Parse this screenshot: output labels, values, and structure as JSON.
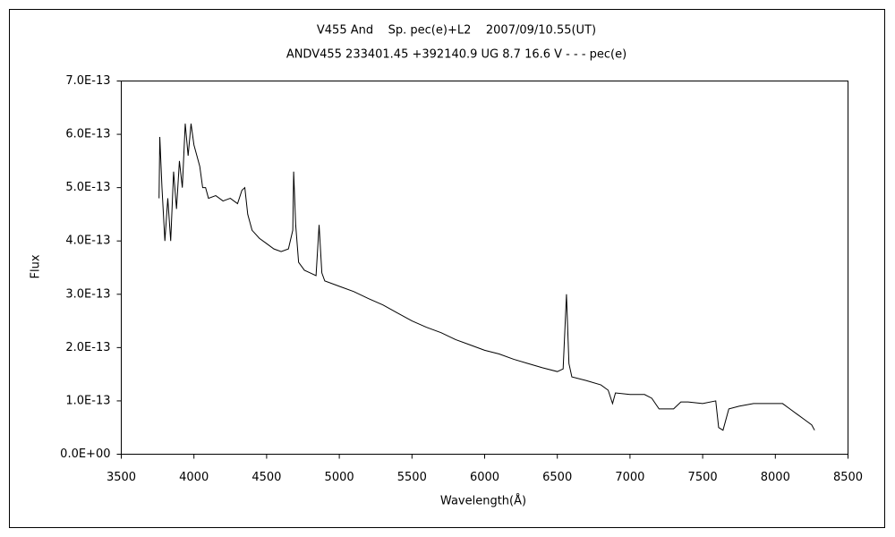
{
  "chart_data": {
    "type": "line",
    "title": "V455 And    Sp. pec(e)+L2    2007/09/10.55(UT)",
    "subtitle": "ANDV455 233401.45 +392140.9 UG 8.7 16.6 V - - - pec(e)",
    "x_label": "Wavelength(Å)",
    "y_label": "Flux",
    "x": [
      3760,
      3765,
      3780,
      3800,
      3820,
      3840,
      3860,
      3880,
      3900,
      3920,
      3940,
      3960,
      3980,
      4000,
      4020,
      4040,
      4060,
      4080,
      4100,
      4150,
      4200,
      4250,
      4300,
      4330,
      4350,
      4370,
      4400,
      4450,
      4500,
      4550,
      4600,
      4650,
      4680,
      4686,
      4700,
      4720,
      4760,
      4800,
      4840,
      4861,
      4880,
      4900,
      5000,
      5100,
      5200,
      5300,
      5400,
      5500,
      5600,
      5700,
      5800,
      5900,
      6000,
      6100,
      6200,
      6300,
      6400,
      6500,
      6540,
      6563,
      6580,
      6600,
      6700,
      6800,
      6850,
      6880,
      6900,
      7000,
      7100,
      7150,
      7200,
      7300,
      7350,
      7400,
      7500,
      7590,
      7610,
      7640,
      7680,
      7750,
      7850,
      7950,
      8050,
      8100,
      8150,
      8200,
      8250,
      8270
    ],
    "series": [
      {
        "name": "Flux",
        "color": "#000000",
        "values": [
          4.8e-13,
          5.95e-13,
          5e-13,
          4e-13,
          4.8e-13,
          4e-13,
          5.3e-13,
          4.6e-13,
          5.5e-13,
          5e-13,
          6.2e-13,
          5.6e-13,
          6.2e-13,
          5.8e-13,
          5.6e-13,
          5.4e-13,
          5e-13,
          5e-13,
          4.8e-13,
          4.85e-13,
          4.75e-13,
          4.8e-13,
          4.7e-13,
          4.95e-13,
          5e-13,
          4.5e-13,
          4.2e-13,
          4.05e-13,
          3.95e-13,
          3.85e-13,
          3.8e-13,
          3.85e-13,
          4.2e-13,
          5.3e-13,
          4.3e-13,
          3.6e-13,
          3.45e-13,
          3.4e-13,
          3.35e-13,
          4.3e-13,
          3.4e-13,
          3.25e-13,
          3.15e-13,
          3.05e-13,
          2.92e-13,
          2.8e-13,
          2.65e-13,
          2.5e-13,
          2.38e-13,
          2.28e-13,
          2.15e-13,
          2.05e-13,
          1.95e-13,
          1.88e-13,
          1.78e-13,
          1.7e-13,
          1.62e-13,
          1.55e-13,
          1.6e-13,
          3e-13,
          1.7e-13,
          1.45e-13,
          1.38e-13,
          1.3e-13,
          1.2e-13,
          9.5e-14,
          1.15e-13,
          1.12e-13,
          1.12e-13,
          1.05e-13,
          8.5e-14,
          8.5e-14,
          9.8e-14,
          9.8e-14,
          9.5e-14,
          1e-13,
          5e-14,
          4.5e-14,
          8.5e-14,
          9e-14,
          9.5e-14,
          9.5e-14,
          9.5e-14,
          8.5e-14,
          7.5e-14,
          6.5e-14,
          5.5e-14,
          4.5e-14
        ]
      }
    ],
    "xlim": [
      3500,
      8500
    ],
    "xticks": [
      3500,
      4000,
      4500,
      5000,
      5500,
      6000,
      6500,
      7000,
      7500,
      8000,
      8500
    ],
    "ylim": [
      0,
      7e-13
    ],
    "yticks": [
      {
        "value": 0,
        "label": "0.0E+00"
      },
      {
        "value": 1e-13,
        "label": "1.0E-13"
      },
      {
        "value": 2e-13,
        "label": "2.0E-13"
      },
      {
        "value": 3e-13,
        "label": "3.0E-13"
      },
      {
        "value": 4e-13,
        "label": "4.0E-13"
      },
      {
        "value": 5e-13,
        "label": "5.0E-13"
      },
      {
        "value": 6e-13,
        "label": "6.0E-13"
      },
      {
        "value": 7e-13,
        "label": "7.0E-13"
      }
    ],
    "grid": false
  }
}
